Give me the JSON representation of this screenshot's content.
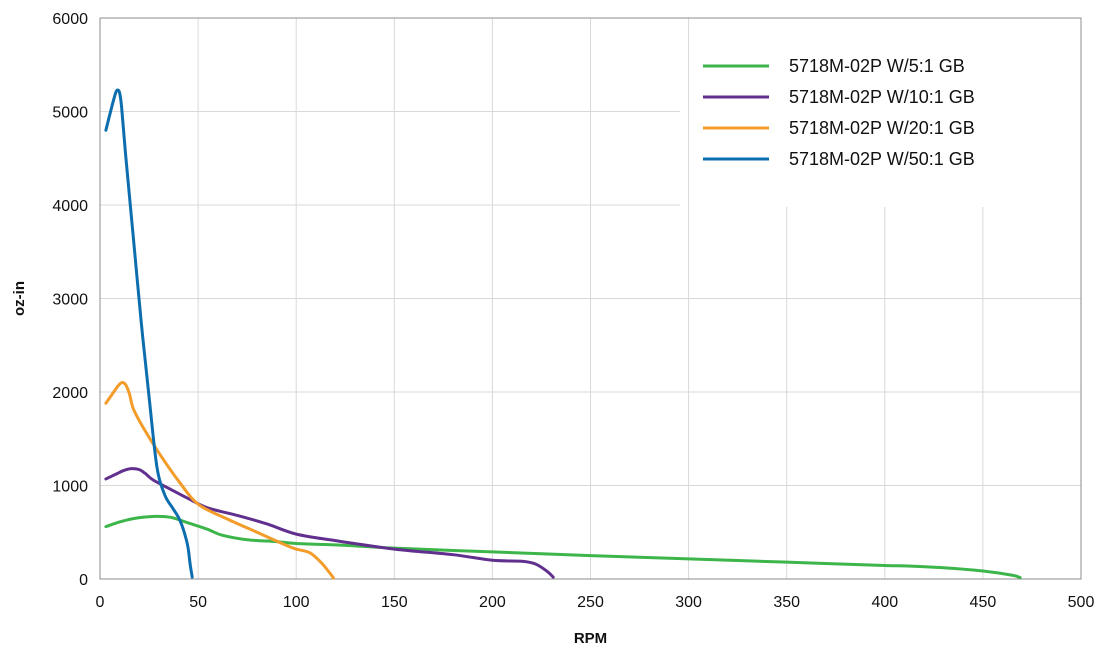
{
  "chart_data": {
    "type": "line",
    "title": "",
    "xlabel": "RPM",
    "ylabel": "oz-in",
    "xlim": [
      0,
      500
    ],
    "ylim": [
      0,
      6000
    ],
    "xticks": [
      0,
      50,
      100,
      150,
      200,
      250,
      300,
      350,
      400,
      450,
      500
    ],
    "yticks": [
      0,
      1000,
      2000,
      3000,
      4000,
      5000,
      6000
    ],
    "grid": true,
    "legend_position": "top-right",
    "series": [
      {
        "name": "5718M-02P W/5:1 GB",
        "color": "#3cb54a",
        "points": [
          [
            3,
            560
          ],
          [
            10,
            610
          ],
          [
            18,
            650
          ],
          [
            28,
            670
          ],
          [
            36,
            660
          ],
          [
            45,
            600
          ],
          [
            55,
            530
          ],
          [
            62,
            470
          ],
          [
            75,
            420
          ],
          [
            90,
            400
          ],
          [
            100,
            380
          ],
          [
            125,
            360
          ],
          [
            150,
            330
          ],
          [
            200,
            290
          ],
          [
            250,
            250
          ],
          [
            300,
            215
          ],
          [
            350,
            180
          ],
          [
            400,
            145
          ],
          [
            410,
            140
          ],
          [
            430,
            120
          ],
          [
            450,
            85
          ],
          [
            465,
            40
          ],
          [
            469,
            15
          ]
        ]
      },
      {
        "name": "5718M-02P W/10:1 GB",
        "color": "#61308e",
        "points": [
          [
            3,
            1070
          ],
          [
            8,
            1120
          ],
          [
            12,
            1160
          ],
          [
            16,
            1180
          ],
          [
            20,
            1170
          ],
          [
            23,
            1130
          ],
          [
            27,
            1060
          ],
          [
            35,
            970
          ],
          [
            45,
            860
          ],
          [
            55,
            760
          ],
          [
            70,
            680
          ],
          [
            85,
            590
          ],
          [
            100,
            480
          ],
          [
            120,
            410
          ],
          [
            150,
            320
          ],
          [
            180,
            260
          ],
          [
            200,
            200
          ],
          [
            215,
            190
          ],
          [
            222,
            160
          ],
          [
            228,
            80
          ],
          [
            231,
            20
          ]
        ]
      },
      {
        "name": "5718M-02P W/20:1 GB",
        "color": "#f39c2a",
        "points": [
          [
            3,
            1880
          ],
          [
            6,
            1970
          ],
          [
            9,
            2060
          ],
          [
            11,
            2100
          ],
          [
            13,
            2080
          ],
          [
            15,
            1980
          ],
          [
            17,
            1820
          ],
          [
            22,
            1620
          ],
          [
            30,
            1350
          ],
          [
            40,
            1050
          ],
          [
            50,
            800
          ],
          [
            65,
            640
          ],
          [
            80,
            500
          ],
          [
            95,
            360
          ],
          [
            100,
            320
          ],
          [
            107,
            280
          ],
          [
            113,
            170
          ],
          [
            118,
            40
          ],
          [
            119,
            10
          ]
        ]
      },
      {
        "name": "5718M-02P W/50:1 GB",
        "color": "#0d6eaf",
        "points": [
          [
            3,
            4800
          ],
          [
            6,
            5050
          ],
          [
            8,
            5200
          ],
          [
            9,
            5230
          ],
          [
            10,
            5200
          ],
          [
            11,
            5050
          ],
          [
            13,
            4550
          ],
          [
            17,
            3650
          ],
          [
            21,
            2750
          ],
          [
            25,
            1950
          ],
          [
            29,
            1200
          ],
          [
            33,
            900
          ],
          [
            37,
            760
          ],
          [
            40,
            660
          ],
          [
            42,
            560
          ],
          [
            44,
            420
          ],
          [
            45,
            320
          ],
          [
            46,
            150
          ],
          [
            47,
            20
          ]
        ]
      }
    ]
  }
}
